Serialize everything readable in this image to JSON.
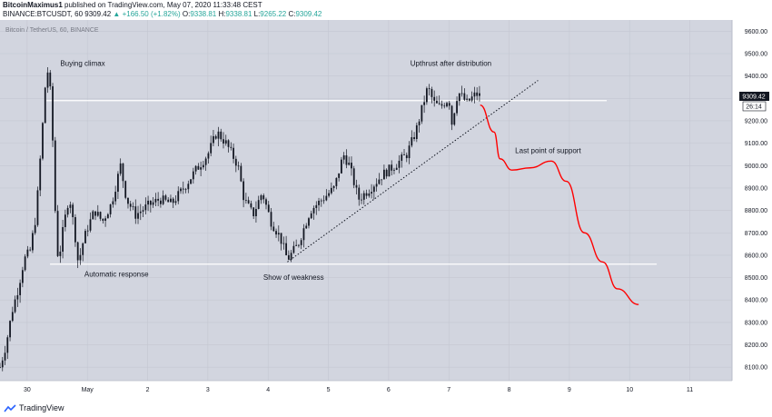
{
  "header": {
    "author": "BitcoinMaximus1",
    "published_text": "published on TradingView.com, May 07, 2020 11:33:48 CEST",
    "symbol_line": "BINANCE:BTCUSDT, 60",
    "last": "9309.42",
    "change": "+166.50 (+1.82%)",
    "o_label": "O:",
    "o_value": "9338.81",
    "h_label": "H:",
    "h_value": "9338.81",
    "l_label": "L:",
    "l_value": "9265.22",
    "c_label": "C:",
    "c_value": "9309.42"
  },
  "footer": {
    "brand": "TradingView"
  },
  "chart_data": {
    "type": "candlestick",
    "title": "Bitcoin / TetherUS, 60, BINANCE",
    "x_labels": [
      "30",
      "May",
      "2",
      "3",
      "4",
      "5",
      "6",
      "7",
      "8",
      "9",
      "10",
      "11"
    ],
    "x_label_days": [
      0,
      1,
      2,
      3,
      4,
      5,
      6,
      7,
      8,
      9,
      10,
      11
    ],
    "x_start_day": -0.45,
    "x_end_day": 11.7,
    "y_ticks": [
      8100,
      8200,
      8300,
      8400,
      8500,
      8600,
      8700,
      8800,
      8900,
      9000,
      9100,
      9200,
      9300,
      9400,
      9500,
      9600
    ],
    "y_tick_labels": [
      "8100.00",
      "8200.00",
      "8300.00",
      "8400.00",
      "8500.00",
      "8600.00",
      "8700.00",
      "8800.00",
      "8900.00",
      "9000.00",
      "9100.00",
      "9200.00",
      "9300.00",
      "9400.00",
      "9500.00",
      "9600.00"
    ],
    "ylim": [
      8040,
      9650
    ],
    "current_price_label": "9309.42",
    "countdown_label": "26:14",
    "anchors": [
      [
        -0.45,
        8100
      ],
      [
        -0.35,
        8200
      ],
      [
        -0.25,
        8350
      ],
      [
        -0.15,
        8450
      ],
      [
        -0.05,
        8580
      ],
      [
        0.05,
        8620
      ],
      [
        0.15,
        8780
      ],
      [
        0.25,
        9150
      ],
      [
        0.3,
        9350
      ],
      [
        0.36,
        9450
      ],
      [
        0.42,
        9150
      ],
      [
        0.48,
        8700
      ],
      [
        0.52,
        8570
      ],
      [
        0.6,
        8720
      ],
      [
        0.7,
        8870
      ],
      [
        0.8,
        8680
      ],
      [
        0.85,
        8560
      ],
      [
        0.92,
        8650
      ],
      [
        1.0,
        8720
      ],
      [
        1.12,
        8800
      ],
      [
        1.25,
        8750
      ],
      [
        1.4,
        8830
      ],
      [
        1.55,
        9000
      ],
      [
        1.65,
        8850
      ],
      [
        1.8,
        8780
      ],
      [
        2.0,
        8820
      ],
      [
        2.2,
        8850
      ],
      [
        2.4,
        8830
      ],
      [
        2.6,
        8900
      ],
      [
        2.8,
        8980
      ],
      [
        3.0,
        9050
      ],
      [
        3.15,
        9150
      ],
      [
        3.3,
        9100
      ],
      [
        3.5,
        9000
      ],
      [
        3.6,
        8850
      ],
      [
        3.75,
        8780
      ],
      [
        3.9,
        8880
      ],
      [
        4.05,
        8750
      ],
      [
        4.2,
        8680
      ],
      [
        4.32,
        8580
      ],
      [
        4.5,
        8650
      ],
      [
        4.7,
        8800
      ],
      [
        4.9,
        8850
      ],
      [
        5.1,
        8900
      ],
      [
        5.25,
        9050
      ],
      [
        5.35,
        9000
      ],
      [
        5.5,
        8850
      ],
      [
        5.7,
        8900
      ],
      [
        5.9,
        8960
      ],
      [
        6.1,
        9000
      ],
      [
        6.3,
        9050
      ],
      [
        6.45,
        9150
      ],
      [
        6.55,
        9250
      ],
      [
        6.65,
        9350
      ],
      [
        6.75,
        9280
      ],
      [
        6.85,
        9260
      ],
      [
        7.0,
        9300
      ],
      [
        7.05,
        9190
      ],
      [
        7.15,
        9330
      ],
      [
        7.3,
        9280
      ],
      [
        7.45,
        9320
      ],
      [
        7.52,
        9310
      ]
    ],
    "horizontal_lines": [
      {
        "price": 9290,
        "from_day": 0.32,
        "to_day": 9.62
      },
      {
        "price": 8560,
        "from_day": 0.38,
        "to_day": 10.45
      }
    ],
    "trendline": {
      "from": [
        4.32,
        8570
      ],
      "to": [
        8.48,
        9380
      ]
    },
    "projection": [
      [
        7.52,
        9270
      ],
      [
        7.75,
        9150
      ],
      [
        7.85,
        9030
      ],
      [
        8.05,
        8980
      ],
      [
        8.35,
        8990
      ],
      [
        8.7,
        9020
      ],
      [
        8.95,
        8930
      ],
      [
        9.25,
        8700
      ],
      [
        9.55,
        8570
      ],
      [
        9.8,
        8450
      ],
      [
        10.15,
        8380
      ]
    ],
    "annotations": [
      {
        "text": "Buying climax",
        "day": 0.55,
        "price": 9445
      },
      {
        "text": "Upthrust after distribution",
        "day": 6.36,
        "price": 9445
      },
      {
        "text": "Last point of support",
        "day": 8.1,
        "price": 9055
      },
      {
        "text": "Automatic response",
        "day": 0.95,
        "price": 8505
      },
      {
        "text": "Show of weakness",
        "day": 3.92,
        "price": 8490
      }
    ]
  }
}
